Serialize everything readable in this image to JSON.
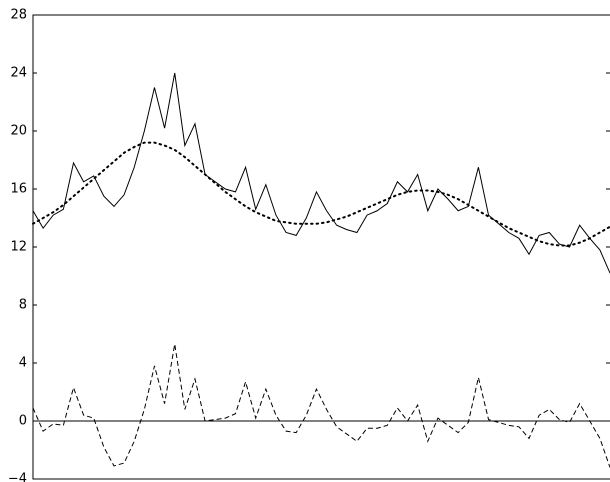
{
  "chart_data": {
    "type": "line",
    "x": [
      0,
      1,
      2,
      3,
      4,
      5,
      6,
      7,
      8,
      9,
      10,
      11,
      12,
      13,
      14,
      15,
      16,
      17,
      18,
      19,
      20,
      21,
      22,
      23,
      24,
      25,
      26,
      27,
      28,
      29,
      30,
      31,
      32,
      33,
      34,
      35,
      36,
      37,
      38,
      39,
      40,
      41,
      42,
      43,
      44,
      45,
      46,
      47,
      48,
      49,
      50,
      51,
      52,
      53,
      54,
      55,
      56,
      57
    ],
    "xlim": [
      0,
      57
    ],
    "ylim": [
      -4,
      28
    ],
    "yticks": [
      {
        "value": -4,
        "label": "−4"
      },
      0,
      4,
      8,
      12,
      16,
      20,
      24,
      28
    ],
    "series": [
      {
        "color": "#000000",
        "style": "solid",
        "values": [
          14.5,
          13.3,
          14.2,
          14.6,
          17.8,
          16.5,
          16.9,
          15.5,
          14.8,
          15.6,
          17.5,
          20.0,
          23.0,
          20.2,
          24.0,
          19.0,
          20.5,
          17.0,
          16.5,
          16.0,
          15.8,
          17.5,
          14.6,
          16.3,
          14.2,
          13.0,
          12.8,
          14.0,
          15.8,
          14.5,
          13.5,
          13.2,
          13.0,
          14.2,
          14.5,
          15.0,
          16.5,
          15.8,
          17.0,
          14.5,
          16.0,
          15.3,
          14.5,
          14.8,
          17.5,
          14.2,
          13.6,
          13.0,
          12.6,
          11.5,
          12.8,
          13.0,
          12.2,
          12.0,
          13.5,
          12.6,
          11.8,
          10.2
        ]
      },
      {
        "color": "#000000",
        "style": "dotted",
        "values": [
          13.6,
          14.0,
          14.4,
          14.9,
          15.5,
          16.1,
          16.7,
          17.3,
          17.9,
          18.5,
          18.9,
          19.2,
          19.2,
          19.0,
          18.7,
          18.2,
          17.6,
          17.0,
          16.4,
          15.8,
          15.3,
          14.8,
          14.4,
          14.1,
          13.8,
          13.7,
          13.6,
          13.6,
          13.6,
          13.7,
          13.9,
          14.1,
          14.4,
          14.7,
          15.0,
          15.3,
          15.6,
          15.8,
          15.9,
          15.9,
          15.8,
          15.6,
          15.3,
          14.9,
          14.5,
          14.1,
          13.7,
          13.3,
          13.0,
          12.7,
          12.4,
          12.2,
          12.1,
          12.1,
          12.3,
          12.6,
          13.0,
          13.4
        ]
      },
      {
        "color": "#000000",
        "style": "dashed",
        "values": [
          0.9,
          -0.7,
          -0.2,
          -0.3,
          2.3,
          0.4,
          0.2,
          -1.8,
          -3.1,
          -2.9,
          -1.4,
          0.8,
          3.8,
          1.2,
          5.3,
          0.8,
          2.9,
          0.0,
          0.1,
          0.2,
          0.5,
          2.7,
          0.2,
          2.2,
          0.4,
          -0.7,
          -0.8,
          0.4,
          2.2,
          0.8,
          -0.4,
          -0.9,
          -1.4,
          -0.5,
          -0.5,
          -0.3,
          0.9,
          0.0,
          1.1,
          -1.4,
          0.2,
          -0.3,
          -0.8,
          -0.1,
          3.0,
          0.1,
          -0.1,
          -0.3,
          -0.4,
          -1.2,
          0.4,
          0.8,
          0.1,
          -0.1,
          1.2,
          0.0,
          -1.2,
          -3.2
        ]
      }
    ]
  }
}
